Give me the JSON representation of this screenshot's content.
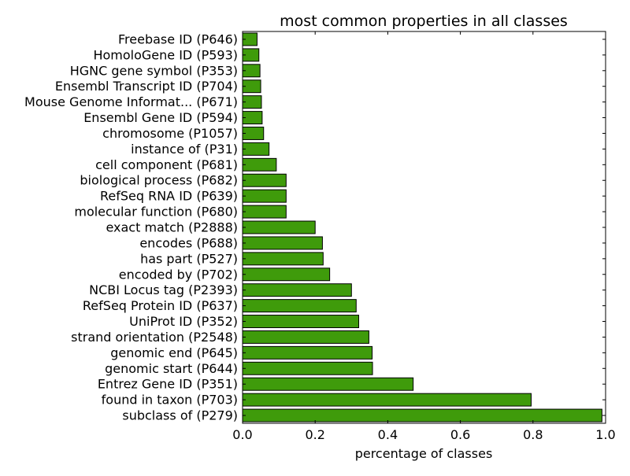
{
  "chart_data": {
    "type": "bar",
    "orientation": "horizontal",
    "title": "most common properties in all classes",
    "xlabel": "percentage of classes",
    "ylabel": "",
    "xlim": [
      0.0,
      1.0
    ],
    "xticks": [
      "0.0",
      "0.2",
      "0.4",
      "0.6",
      "0.8",
      "1.0"
    ],
    "grid": false,
    "legend": "none",
    "bar_color": "#3f9b0b",
    "bar_edge_color": "#000000",
    "categories": [
      "subclass of (P279)",
      "found in taxon (P703)",
      "Entrez Gene ID (P351)",
      "genomic start (P644)",
      "genomic end (P645)",
      "strand orientation (P2548)",
      "UniProt ID (P352)",
      "RefSeq Protein ID (P637)",
      "NCBI Locus tag (P2393)",
      "encoded by (P702)",
      "has part (P527)",
      "encodes (P688)",
      "exact match (P2888)",
      "molecular function (P680)",
      "RefSeq RNA ID (P639)",
      "biological process (P682)",
      "cell component (P681)",
      "instance of (P31)",
      "chromosome (P1057)",
      "Ensembl Gene ID (P594)",
      "Mouse Genome Informat... (P671)",
      "Ensembl Transcript ID (P704)",
      "HGNC gene symbol (P353)",
      "HomoloGene ID (P593)",
      "Freebase ID (P646)"
    ],
    "values": [
      0.99,
      0.795,
      0.47,
      0.358,
      0.357,
      0.348,
      0.32,
      0.313,
      0.3,
      0.24,
      0.222,
      0.22,
      0.2,
      0.12,
      0.12,
      0.12,
      0.093,
      0.073,
      0.058,
      0.054,
      0.052,
      0.05,
      0.048,
      0.045,
      0.04
    ]
  }
}
